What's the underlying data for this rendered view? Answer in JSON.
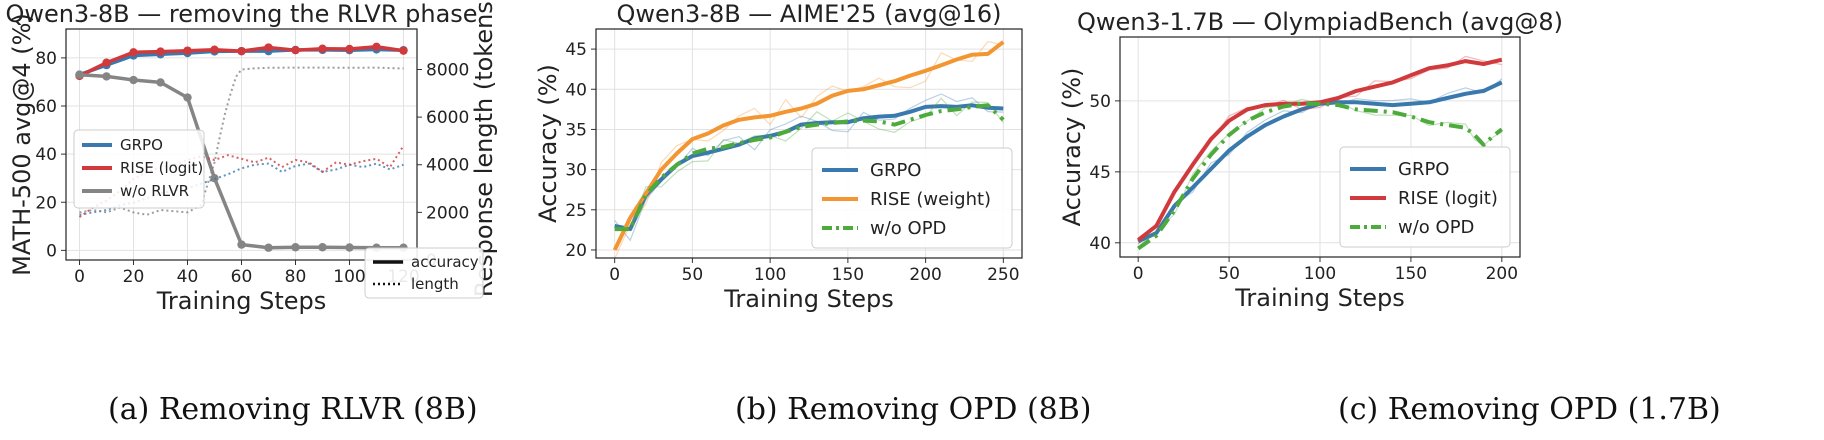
{
  "colors": {
    "grpo": "#3A79AE",
    "rise": "#D03A3C",
    "worlvr": "#858585",
    "orange": "#F39530",
    "green": "#4DAA3C",
    "grid": "#E2E2E2"
  },
  "captions": [
    "(a) Removing RLVR (8B)",
    "(b) Removing OPD (8B)",
    "(c) Removing OPD (1.7B)"
  ],
  "chart_data": [
    {
      "type": "line",
      "title": "Qwen3-8B — removing the RLVR phase",
      "xlabel": "Training Steps",
      "ylabel": "MATH-500 avg@4 (%)",
      "ylabel_right": "Response length (tokens)",
      "xlim": [
        -5,
        125
      ],
      "ylim": [
        -4,
        92
      ],
      "ylim_right": [
        0,
        9700
      ],
      "xticks": [
        0,
        20,
        40,
        60,
        80,
        100,
        120
      ],
      "yticks": [
        0,
        20,
        40,
        60,
        80
      ],
      "yticks_right": [
        0,
        2000,
        4000,
        6000,
        8000
      ],
      "grid": true,
      "legend_position": "center-left",
      "style_legend_position": "bottom-right",
      "style_legend": [
        "accuracy",
        "length"
      ],
      "series": [
        {
          "name": "GRPO",
          "style": "accuracy",
          "color": "#3A79AE",
          "markers": true,
          "x": [
            0,
            10,
            20,
            30,
            40,
            50,
            60,
            70,
            80,
            90,
            100,
            110,
            120
          ],
          "y": [
            73,
            77,
            81,
            81.5,
            82,
            82.7,
            82.8,
            82.8,
            83.3,
            83.3,
            83.2,
            83.5,
            83.2
          ]
        },
        {
          "name": "RISE (logit)",
          "style": "accuracy",
          "color": "#D03A3C",
          "markers": true,
          "x": [
            0,
            10,
            20,
            30,
            40,
            50,
            60,
            70,
            80,
            90,
            100,
            110,
            120
          ],
          "y": [
            72.5,
            78,
            82.3,
            82.6,
            83,
            83.4,
            82.8,
            84.3,
            83.2,
            83.8,
            83.7,
            84.6,
            83
          ]
        },
        {
          "name": "w/o RLVR",
          "style": "accuracy",
          "color": "#858585",
          "markers": true,
          "x": [
            0,
            10,
            20,
            30,
            40,
            50,
            60,
            70,
            80,
            90,
            100,
            110,
            120
          ],
          "y": [
            73,
            72.3,
            70.8,
            69.8,
            63.5,
            30,
            2.4,
            1.1,
            1.3,
            1.3,
            1.2,
            1.1,
            1.1
          ]
        },
        {
          "name": "GRPO",
          "style": "length",
          "color": "#3A79AE",
          "axis": "right",
          "x": [
            0,
            5,
            10,
            15,
            20,
            25,
            30,
            35,
            40,
            45,
            50,
            55,
            60,
            65,
            70,
            75,
            80,
            85,
            90,
            95,
            100,
            105,
            110,
            115,
            120
          ],
          "y": [
            1900,
            2000,
            2100,
            2300,
            2400,
            2600,
            2800,
            2900,
            3000,
            3200,
            3400,
            3600,
            3850,
            4000,
            4050,
            3700,
            3950,
            4050,
            3700,
            3800,
            4000,
            3900,
            4050,
            3800,
            4000
          ]
        },
        {
          "name": "RISE (logit)",
          "style": "length",
          "color": "#D03A3C",
          "axis": "right",
          "x": [
            0,
            5,
            10,
            15,
            20,
            25,
            30,
            35,
            40,
            45,
            50,
            55,
            60,
            65,
            70,
            75,
            80,
            85,
            90,
            95,
            100,
            105,
            110,
            115,
            120
          ],
          "y": [
            1800,
            2200,
            2500,
            2900,
            3400,
            3700,
            3900,
            4000,
            4200,
            4350,
            4200,
            4400,
            4250,
            4100,
            4300,
            3900,
            4200,
            4100,
            3700,
            4100,
            4000,
            4150,
            4250,
            3900,
            4800
          ]
        },
        {
          "name": "w/o RLVR",
          "style": "length",
          "color": "#858585",
          "axis": "right",
          "x": [
            0,
            5,
            10,
            15,
            20,
            25,
            30,
            35,
            40,
            45,
            50,
            52,
            54,
            56,
            58,
            60,
            65,
            70,
            80,
            90,
            100,
            110,
            115,
            120
          ],
          "y": [
            2000,
            2100,
            2000,
            2200,
            2000,
            1900,
            2100,
            2050,
            2000,
            2300,
            4100,
            5200,
            6200,
            7000,
            7700,
            8000,
            8050,
            8070,
            8080,
            8080,
            8070,
            8080,
            8060,
            8040
          ]
        }
      ]
    },
    {
      "type": "line",
      "title": "Qwen3-8B — AIME'25 (avg@16)",
      "xlabel": "Training Steps",
      "ylabel": "Accuracy (%)",
      "xlim": [
        -12,
        262
      ],
      "ylim": [
        19,
        47.5
      ],
      "xticks": [
        0,
        50,
        100,
        150,
        200,
        250
      ],
      "yticks": [
        20,
        25,
        30,
        35,
        40,
        45
      ],
      "grid": true,
      "legend_position": "bottom-right",
      "series": [
        {
          "name": "GRPO",
          "color": "#3A79AE",
          "dash": "solid",
          "x": [
            0,
            10,
            20,
            30,
            40,
            50,
            60,
            70,
            80,
            90,
            100,
            110,
            120,
            130,
            140,
            150,
            160,
            170,
            180,
            190,
            200,
            210,
            220,
            230,
            240,
            250
          ],
          "y": [
            23,
            22.6,
            26.8,
            28.8,
            30.6,
            31.7,
            32.1,
            32.6,
            33.1,
            33.9,
            34.2,
            34.7,
            35.6,
            35.8,
            35.9,
            35.9,
            36.4,
            36.6,
            36.7,
            37.2,
            37.8,
            37.9,
            37.8,
            38,
            37.7,
            37.6
          ]
        },
        {
          "name": "RISE (weight)",
          "color": "#F39530",
          "dash": "solid",
          "x": [
            0,
            10,
            20,
            30,
            40,
            50,
            60,
            70,
            80,
            90,
            100,
            110,
            120,
            130,
            140,
            150,
            160,
            170,
            180,
            190,
            200,
            210,
            220,
            230,
            240,
            250
          ],
          "y": [
            20,
            24,
            27,
            30,
            32,
            33.8,
            34.5,
            35.5,
            36.2,
            36.5,
            36.7,
            37.2,
            37.6,
            38.2,
            39.2,
            39.8,
            40,
            40.5,
            41,
            41.7,
            42.3,
            43,
            43.7,
            44.3,
            44.4,
            45.9
          ]
        },
        {
          "name": "w/o OPD",
          "color": "#4DAA3C",
          "dash": "dashdot",
          "x": [
            0,
            10,
            20,
            30,
            40,
            50,
            60,
            70,
            80,
            90,
            100,
            110,
            120,
            130,
            140,
            150,
            160,
            170,
            180,
            190,
            200,
            210,
            220,
            230,
            240,
            250
          ],
          "y": [
            22.6,
            22.6,
            26.8,
            29,
            30.6,
            32,
            32.6,
            32.8,
            33.3,
            33.7,
            34,
            34.7,
            35.3,
            35.6,
            35.8,
            36,
            36.1,
            36,
            35.6,
            36.2,
            36.8,
            37.3,
            37.5,
            37.8,
            38,
            36.2
          ]
        }
      ]
    },
    {
      "type": "line",
      "title": "Qwen3-1.7B — OlympiadBench (avg@8)",
      "xlabel": "Training Steps",
      "ylabel": "Accuracy (%)",
      "xlim": [
        -10,
        210
      ],
      "ylim": [
        39,
        54.5
      ],
      "xticks": [
        0,
        50,
        100,
        150,
        200
      ],
      "yticks": [
        40,
        45,
        50
      ],
      "grid": true,
      "legend_position": "bottom-right",
      "series": [
        {
          "name": "GRPO",
          "color": "#3A79AE",
          "dash": "solid",
          "x": [
            0,
            10,
            20,
            30,
            40,
            50,
            60,
            70,
            80,
            90,
            100,
            110,
            120,
            130,
            140,
            150,
            160,
            170,
            180,
            190,
            200
          ],
          "y": [
            40.1,
            40.7,
            42.6,
            43.9,
            45.2,
            46.5,
            47.5,
            48.3,
            48.9,
            49.4,
            49.8,
            49.9,
            49.9,
            49.8,
            49.7,
            49.8,
            49.9,
            50.2,
            50.5,
            50.7,
            51.3
          ]
        },
        {
          "name": "RISE (logit)",
          "color": "#D03A3C",
          "dash": "solid",
          "x": [
            0,
            10,
            20,
            30,
            40,
            50,
            60,
            70,
            80,
            90,
            100,
            110,
            120,
            130,
            140,
            150,
            160,
            170,
            180,
            190,
            200
          ],
          "y": [
            40.2,
            41.2,
            43.6,
            45.5,
            47.3,
            48.6,
            49.4,
            49.7,
            49.8,
            49.8,
            49.9,
            50.2,
            50.7,
            51,
            51.3,
            51.8,
            52.3,
            52.5,
            52.8,
            52.6,
            52.9
          ]
        },
        {
          "name": "w/o OPD",
          "color": "#4DAA3C",
          "dash": "dashdot",
          "x": [
            0,
            10,
            20,
            30,
            40,
            50,
            60,
            70,
            80,
            90,
            100,
            110,
            120,
            130,
            140,
            150,
            160,
            170,
            180,
            185,
            190,
            195,
            200
          ],
          "y": [
            39.6,
            40.5,
            42.3,
            44.5,
            46.2,
            47.6,
            48.6,
            49.2,
            49.6,
            49.8,
            49.8,
            49.7,
            49.4,
            49.3,
            49.2,
            48.9,
            48.5,
            48.3,
            48.1,
            47.6,
            46.9,
            47.5,
            48
          ]
        }
      ]
    }
  ]
}
